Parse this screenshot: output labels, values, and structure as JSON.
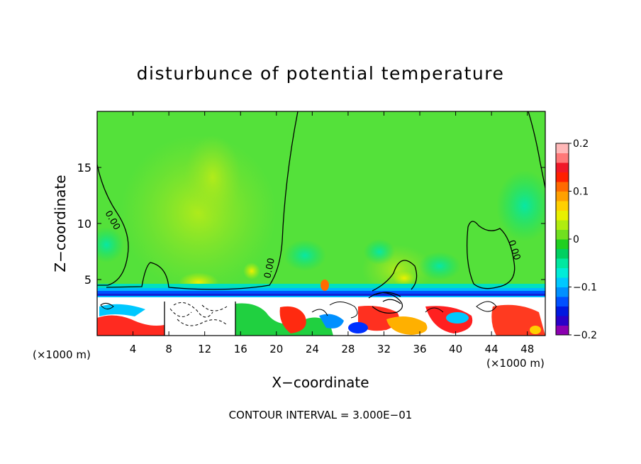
{
  "chart_data": {
    "type": "heatmap",
    "title": "disturbunce of potential temperature",
    "xlabel": "X−coordinate",
    "ylabel": "Z−coordinate",
    "x_unit_left": "(×1000 m)",
    "x_unit_right": "(×1000 m)",
    "xlim": [
      0,
      50
    ],
    "ylim": [
      0,
      20
    ],
    "x_ticks": [
      "4",
      "8",
      "12",
      "16",
      "20",
      "24",
      "28",
      "32",
      "36",
      "40",
      "44",
      "48"
    ],
    "y_ticks": [
      "5",
      "10",
      "15"
    ],
    "colorbar": {
      "range": [
        -0.2,
        0.2
      ],
      "tick_labels": [
        "0.2",
        "0.1",
        "0",
        "−0.1",
        "−0.2"
      ],
      "colors": [
        "#8b00b0",
        "#2a00c8",
        "#0018e0",
        "#0050ff",
        "#0090ff",
        "#00c8ff",
        "#00ecd8",
        "#00e8a0",
        "#00d060",
        "#20d020",
        "#70e020",
        "#b0ec10",
        "#e8f000",
        "#ffd000",
        "#ffa000",
        "#ff6a00",
        "#ff2000",
        "#f01828",
        "#ff7878",
        "#ffb8b8"
      ]
    },
    "contour_labels": [
      "0.00",
      "0.00",
      "0.00"
    ],
    "annotation": "CONTOUR INTERVAL = 3.000E−01"
  }
}
